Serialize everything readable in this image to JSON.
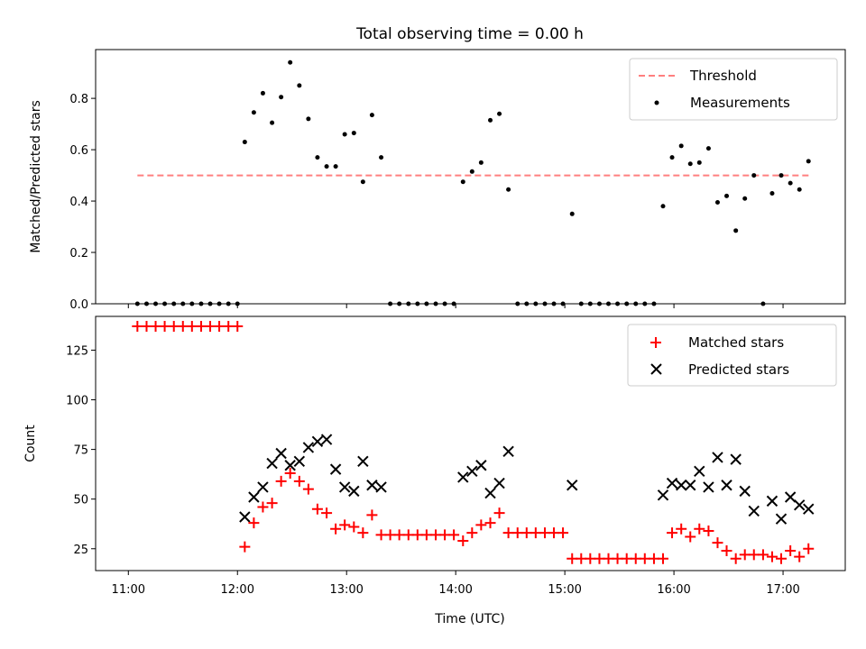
{
  "chart_data": [
    {
      "type": "scatter",
      "title": "Total observing time = 0.00 h",
      "xlabel": "",
      "ylabel": "Matched/Predicted stars",
      "xlim": [
        10.7,
        17.57
      ],
      "ylim": [
        0.0,
        0.99
      ],
      "yticks": [
        0.0,
        0.2,
        0.4,
        0.6,
        0.8
      ],
      "ytick_labels": [
        "0.0",
        "0.2",
        "0.4",
        "0.6",
        "0.8"
      ],
      "grid": false,
      "legend_position": "top-right",
      "threshold": {
        "name": "Threshold",
        "color": "#ff7f7f",
        "style": "dashed",
        "y": 0.5,
        "x_start": 11.083,
        "x_end": 17.25
      },
      "series": [
        {
          "name": "Measurements",
          "color": "#000000",
          "marker": "dot",
          "x": [
            11.083,
            11.167,
            11.25,
            11.333,
            11.417,
            11.5,
            11.583,
            11.667,
            11.75,
            11.833,
            11.917,
            12.0,
            12.067,
            12.15,
            12.233,
            12.317,
            12.4,
            12.483,
            12.567,
            12.65,
            12.733,
            12.817,
            12.9,
            12.983,
            13.067,
            13.15,
            13.233,
            13.317,
            13.4,
            13.483,
            13.567,
            13.65,
            13.733,
            13.817,
            13.9,
            13.983,
            14.067,
            14.15,
            14.233,
            14.317,
            14.4,
            14.483,
            14.567,
            14.65,
            14.733,
            14.817,
            14.9,
            14.983,
            15.067,
            15.15,
            15.233,
            15.317,
            15.4,
            15.483,
            15.567,
            15.65,
            15.733,
            15.817,
            15.9,
            15.983,
            16.067,
            16.15,
            16.233,
            16.317,
            16.4,
            16.483,
            16.567,
            16.65,
            16.733,
            16.817,
            16.9,
            16.983,
            17.067,
            17.15,
            17.233
          ],
          "y": [
            0,
            0,
            0,
            0,
            0,
            0,
            0,
            0,
            0,
            0,
            0,
            0,
            0.63,
            0.745,
            0.82,
            0.705,
            0.805,
            0.94,
            0.85,
            0.72,
            0.57,
            0.535,
            0.535,
            0.66,
            0.665,
            0.475,
            0.735,
            0.57,
            0,
            0,
            0,
            0,
            0,
            0,
            0,
            0,
            0.475,
            0.515,
            0.55,
            0.715,
            0.74,
            0.445,
            0,
            0,
            0,
            0,
            0,
            0,
            0.35,
            0,
            0,
            0,
            0,
            0,
            0,
            0,
            0,
            0,
            0.38,
            0.57,
            0.615,
            0.545,
            0.55,
            0.605,
            0.395,
            0.42,
            0.285,
            0.41,
            0.5,
            0,
            0.43,
            0.5,
            0.47,
            0.445,
            0.555
          ]
        }
      ]
    },
    {
      "type": "scatter",
      "title": "",
      "xlabel": "Time (UTC)",
      "ylabel": "Count",
      "xlim": [
        10.7,
        17.57
      ],
      "ylim": [
        14,
        142
      ],
      "xticks": [
        11,
        12,
        13,
        14,
        15,
        16,
        17
      ],
      "xtick_labels": [
        "11:00",
        "12:00",
        "13:00",
        "14:00",
        "15:00",
        "16:00",
        "17:00"
      ],
      "yticks": [
        25,
        50,
        75,
        100,
        125
      ],
      "ytick_labels": [
        "25",
        "50",
        "75",
        "100",
        "125"
      ],
      "grid": false,
      "legend_position": "top-right",
      "series": [
        {
          "name": "Matched stars",
          "color": "#ff0000",
          "marker": "plus",
          "x": [
            11.083,
            11.167,
            11.25,
            11.333,
            11.417,
            11.5,
            11.583,
            11.667,
            11.75,
            11.833,
            11.917,
            12.0,
            12.067,
            12.15,
            12.233,
            12.317,
            12.4,
            12.483,
            12.567,
            12.65,
            12.733,
            12.817,
            12.9,
            12.983,
            13.067,
            13.15,
            13.233,
            13.317,
            13.4,
            13.483,
            13.567,
            13.65,
            13.733,
            13.817,
            13.9,
            13.983,
            14.067,
            14.15,
            14.233,
            14.317,
            14.4,
            14.483,
            14.567,
            14.65,
            14.733,
            14.817,
            14.9,
            14.983,
            15.067,
            15.15,
            15.233,
            15.317,
            15.4,
            15.483,
            15.567,
            15.65,
            15.733,
            15.817,
            15.9,
            15.983,
            16.067,
            16.15,
            16.233,
            16.317,
            16.4,
            16.483,
            16.567,
            16.65,
            16.733,
            16.817,
            16.9,
            16.983,
            17.067,
            17.15,
            17.233
          ],
          "y": [
            137,
            137,
            137,
            137,
            137,
            137,
            137,
            137,
            137,
            137,
            137,
            137,
            26,
            38,
            46,
            48,
            59,
            63,
            59,
            55,
            45,
            43,
            35,
            37,
            36,
            33,
            42,
            32,
            32,
            32,
            32,
            32,
            32,
            32,
            32,
            32,
            29,
            33,
            37,
            38,
            43,
            33,
            33,
            33,
            33,
            33,
            33,
            33,
            20,
            20,
            20,
            20,
            20,
            20,
            20,
            20,
            20,
            20,
            20,
            33,
            35,
            31,
            35,
            34,
            28,
            24,
            20,
            22,
            22,
            22,
            21,
            20,
            24,
            21,
            25
          ]
        },
        {
          "name": "Predicted stars",
          "color": "#000000",
          "marker": "cross",
          "x": [
            12.067,
            12.15,
            12.233,
            12.317,
            12.4,
            12.483,
            12.567,
            12.65,
            12.733,
            12.817,
            12.9,
            12.983,
            13.067,
            13.15,
            13.233,
            13.317,
            14.067,
            14.15,
            14.233,
            14.317,
            14.4,
            14.483,
            15.067,
            15.9,
            15.983,
            16.067,
            16.15,
            16.233,
            16.317,
            16.4,
            16.483,
            16.567,
            16.65,
            16.733,
            16.9,
            16.983,
            17.067,
            17.15,
            17.233
          ],
          "y": [
            41,
            51,
            56,
            68,
            73,
            67,
            69,
            76,
            79,
            80,
            65,
            56,
            54,
            69,
            57,
            56,
            61,
            64,
            67,
            53,
            58,
            74,
            57,
            52,
            58,
            57,
            57,
            64,
            56,
            71,
            57,
            70,
            54,
            44,
            49,
            40,
            51,
            47,
            45
          ]
        }
      ]
    }
  ]
}
